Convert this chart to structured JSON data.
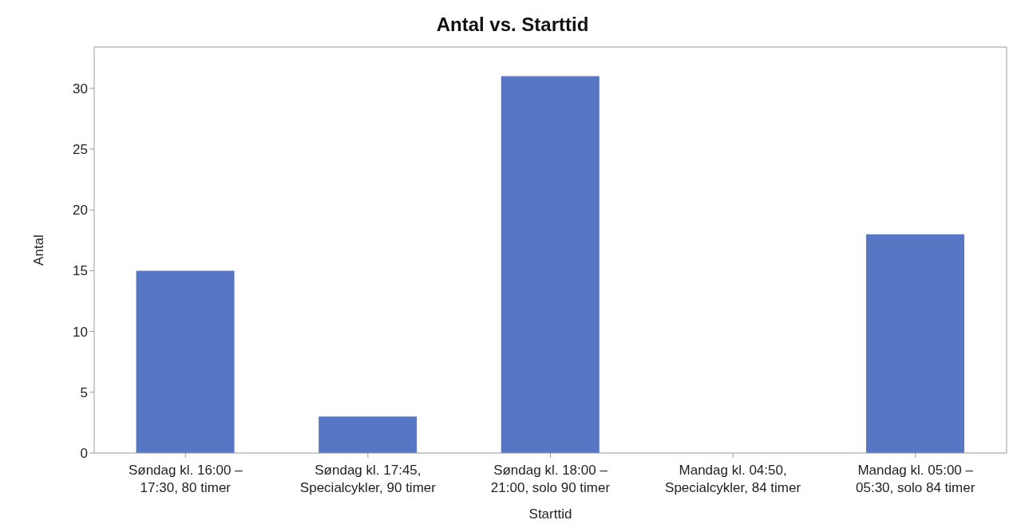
{
  "chart_data": {
    "type": "bar",
    "title": "Antal vs. Starttid",
    "xlabel": "Starttid",
    "ylabel": "Antal",
    "categories": [
      "Søndag kl. 16:00 – 17:30, 80 timer",
      "Søndag kl. 17:45, Specialcykler, 90 timer",
      "Søndag kl. 18:00 – 21:00, solo 90 timer",
      "Mandag kl. 04:50, Specialcykler, 84 timer",
      "Mandag kl. 05:00 – 05:30, solo 84 timer"
    ],
    "values": [
      15,
      3,
      31,
      0,
      18
    ],
    "color": "#5777c5",
    "ylim": [
      0,
      33.4
    ],
    "yticks": [
      0,
      5,
      10,
      15,
      20,
      25,
      30
    ],
    "grid": false,
    "legend": false
  }
}
